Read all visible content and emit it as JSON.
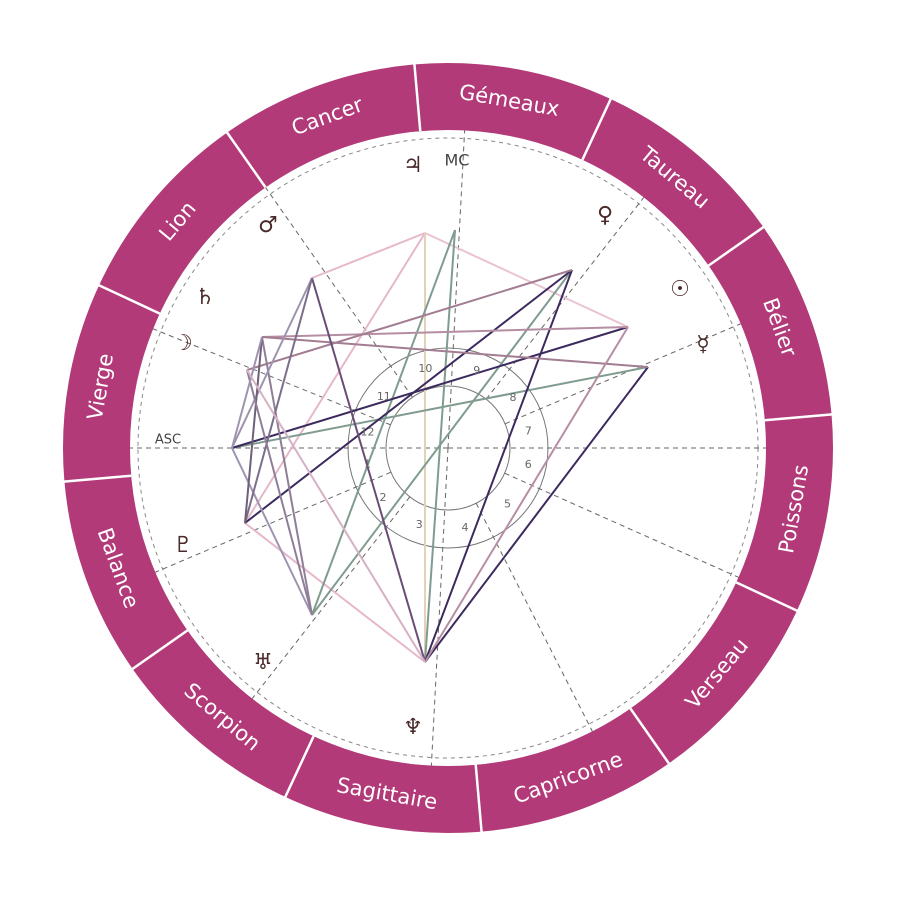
{
  "signs": [
    "Gémeaux",
    "Taureau",
    "Bélier",
    "Poissons",
    "Verseau",
    "Capricorne",
    "Sagittaire",
    "Scorpion",
    "Balance",
    "Vierge",
    "Lion",
    "Cancer"
  ],
  "angles": {
    "asc": "ASC",
    "mc": "MC"
  },
  "planets": [
    "♃",
    "♀",
    "☉",
    "☿",
    "♂",
    "♄",
    "☽",
    "♇",
    "♅",
    "♆"
  ],
  "houses": [
    "1",
    "2",
    "3",
    "4",
    "5",
    "6",
    "7",
    "8",
    "9",
    "10",
    "11",
    "12"
  ]
}
